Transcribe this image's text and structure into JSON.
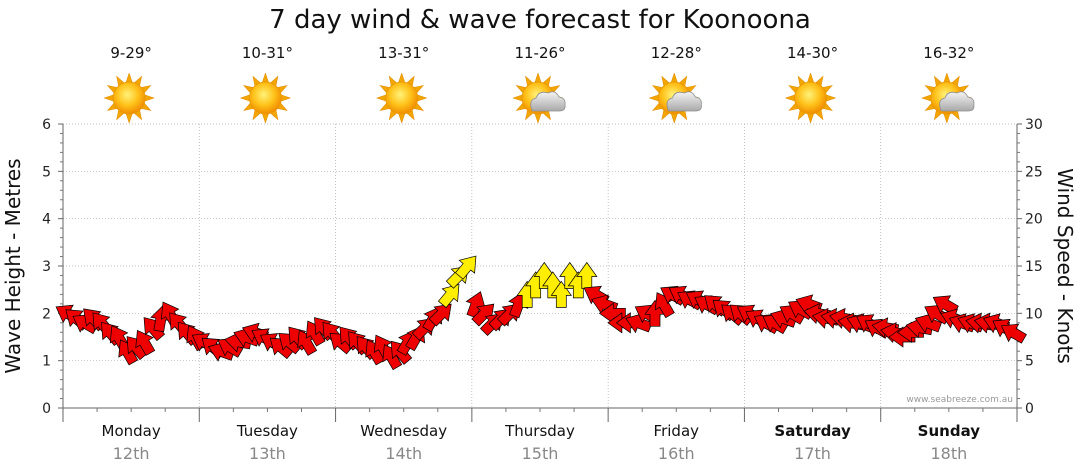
{
  "title": "7 day wind & wave forecast for Koonoona",
  "watermark": "www.seabreeze.com.au",
  "days": [
    {
      "name": "Monday",
      "date": "12th",
      "temp": "9-29°",
      "icon": "sun-icon",
      "weekend": false
    },
    {
      "name": "Tuesday",
      "date": "13th",
      "temp": "10-31°",
      "icon": "sun-icon",
      "weekend": false
    },
    {
      "name": "Wednesday",
      "date": "14th",
      "temp": "13-31°",
      "icon": "sun-icon",
      "weekend": false
    },
    {
      "name": "Thursday",
      "date": "15th",
      "temp": "11-26°",
      "icon": "sun-cloud-icon",
      "weekend": false
    },
    {
      "name": "Friday",
      "date": "16th",
      "temp": "12-28°",
      "icon": "sun-cloud-icon",
      "weekend": false
    },
    {
      "name": "Saturday",
      "date": "17th",
      "temp": "14-30°",
      "icon": "sun-icon",
      "weekend": true
    },
    {
      "name": "Sunday",
      "date": "18th",
      "temp": "16-32°",
      "icon": "sun-cloud-icon",
      "weekend": true
    }
  ],
  "chart_data": {
    "type": "scatter",
    "title": "7 day wind & wave forecast for Koonoona",
    "y_left": {
      "label": "Wave Height - Metres",
      "range": [
        0,
        6
      ],
      "ticks": [
        "0",
        "1",
        "2",
        "3",
        "4",
        "5",
        "6"
      ]
    },
    "y_right": {
      "label": "Wind Speed - Knots",
      "range": [
        0,
        30
      ],
      "ticks": [
        "0",
        "5",
        "10",
        "15",
        "20",
        "25",
        "30"
      ]
    },
    "x_categories": [
      "Monday",
      "Tuesday",
      "Wednesday",
      "Thursday",
      "Friday",
      "Saturday",
      "Sunday"
    ],
    "grid": true,
    "colors": {
      "strong": "#ee0000",
      "light": "#ffee00",
      "outline": "#000000"
    },
    "wind_series": [
      {
        "day": 0,
        "knots": [
          10,
          9.5,
          9,
          9.5,
          9,
          8,
          7.5,
          6,
          6.5,
          7,
          8.5,
          9.5,
          10,
          9,
          8,
          7.5
        ],
        "dir": [
          300,
          310,
          300,
          315,
          320,
          320,
          330,
          330,
          320,
          330,
          320,
          10,
          330,
          320,
          320,
          330
        ]
      },
      {
        "day": 1,
        "knots": [
          7,
          6.5,
          6,
          6.5,
          7,
          7.5,
          8,
          7.5,
          7,
          6.5,
          7,
          7.5,
          7,
          8,
          8.5,
          8
        ],
        "dir": [
          300,
          310,
          290,
          300,
          280,
          290,
          290,
          300,
          300,
          310,
          310,
          320,
          330,
          330,
          320,
          320
        ]
      },
      {
        "day": 2,
        "knots": [
          7,
          7.5,
          7,
          6.5,
          6,
          6.5,
          5.5,
          6,
          7,
          7.5,
          8.5,
          9.5,
          10,
          12,
          14,
          15
        ],
        "dir": [
          310,
          320,
          320,
          320,
          330,
          330,
          330,
          320,
          30,
          30,
          45,
          30,
          45,
          40,
          45,
          40
        ]
      },
      {
        "day": 3,
        "knots": [
          11,
          10,
          9,
          9.5,
          10,
          11,
          12,
          13,
          14,
          13,
          12,
          14,
          13,
          14,
          12,
          11
        ],
        "dir": [
          20,
          45,
          45,
          45,
          45,
          20,
          0,
          0,
          0,
          0,
          0,
          0,
          0,
          0,
          300,
          290
        ]
      },
      {
        "day": 4,
        "knots": [
          10,
          9,
          9,
          9,
          10,
          10,
          11,
          12,
          12,
          11.5,
          11.5,
          11,
          11,
          10.5,
          10,
          10
        ],
        "dir": [
          270,
          270,
          270,
          290,
          300,
          0,
          330,
          300,
          300,
          300,
          300,
          300,
          310,
          310,
          310,
          310
        ]
      },
      {
        "day": 5,
        "knots": [
          10,
          9.5,
          9,
          9,
          9.5,
          10,
          10.5,
          11,
          10,
          9.5,
          9.5,
          9.5,
          9,
          9,
          9,
          8.5
        ],
        "dir": [
          300,
          300,
          300,
          300,
          290,
          300,
          300,
          290,
          280,
          280,
          280,
          280,
          280,
          290,
          300,
          300
        ]
      },
      {
        "day": 6,
        "knots": [
          8.5,
          8,
          7.5,
          8,
          8.5,
          9,
          10,
          11,
          9.5,
          9,
          9,
          9,
          9,
          9,
          8.5,
          8
        ],
        "dir": [
          280,
          280,
          270,
          270,
          280,
          290,
          300,
          300,
          290,
          290,
          290,
          280,
          280,
          290,
          300,
          300
        ]
      }
    ]
  }
}
